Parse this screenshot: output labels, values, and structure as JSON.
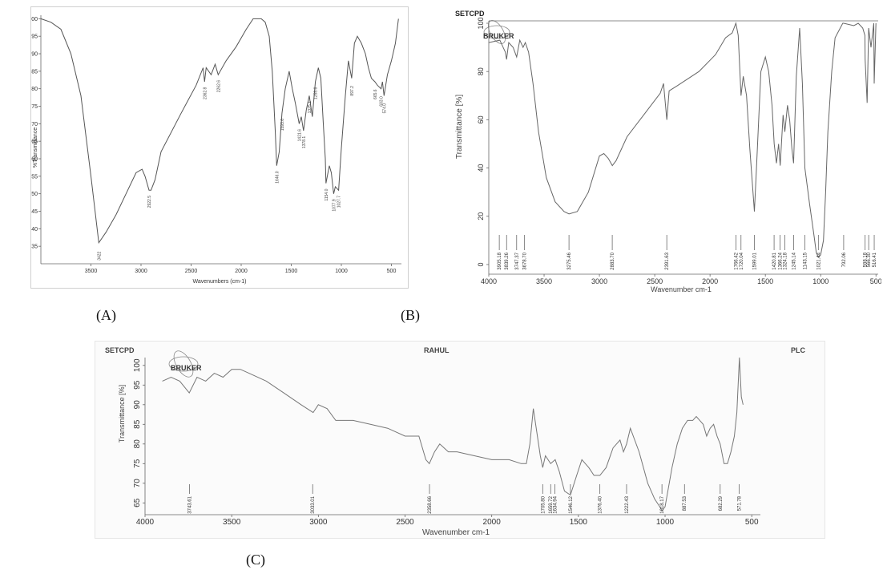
{
  "captions": {
    "a": "(A)",
    "b": "(B)",
    "c": "(C)"
  },
  "chart_data": [
    {
      "panel": "A",
      "type": "line",
      "xlabel": "Wavenumbers (cm-1)",
      "ylabel": "%Transmittance",
      "xlim": [
        4000,
        400
      ],
      "ylim": [
        30,
        101
      ],
      "xticks": [
        3500,
        3000,
        2500,
        2000,
        1500,
        1000,
        500
      ],
      "yticks": [
        35,
        40,
        45,
        50,
        55,
        60,
        65,
        70,
        75,
        80,
        85,
        90,
        95,
        100
      ],
      "line_color": "#555555",
      "series": [
        {
          "x": [
            4000,
            3900,
            3800,
            3700,
            3600,
            3500,
            3422,
            3350,
            3250,
            3150,
            3050,
            2990,
            2960,
            2920,
            2900,
            2860,
            2800,
            2600,
            2450,
            2380,
            2366,
            2350,
            2300,
            2260,
            2230,
            2150,
            2050,
            1950,
            1880,
            1800,
            1760,
            1720,
            1690,
            1660,
            1646,
            1620,
            1593,
            1560,
            1521,
            1490,
            1460,
            1421,
            1400,
            1378,
            1350,
            1320,
            1290,
            1259,
            1230,
            1205,
            1180,
            1160,
            1154,
            1120,
            1100,
            1077,
            1060,
            1027,
            1000,
            960,
            930,
            897,
            870,
            840,
            800,
            760,
            730,
            700,
            665,
            640,
            603,
            590,
            574,
            540,
            500,
            460,
            430
          ],
          "y": [
            100,
            99,
            97,
            90,
            78,
            55,
            36,
            39,
            44,
            50,
            56,
            57,
            55,
            51,
            51,
            54,
            62,
            73,
            81,
            86,
            82,
            86,
            84,
            87,
            84,
            88,
            92,
            97,
            100,
            100,
            99,
            95,
            85,
            68,
            58,
            62,
            73,
            80,
            85,
            80,
            76,
            70,
            72,
            68,
            74,
            78,
            72,
            82,
            86,
            83,
            70,
            60,
            53,
            58,
            56,
            50,
            52,
            51,
            63,
            78,
            88,
            83,
            93,
            95,
            93,
            90,
            86,
            83,
            82,
            81,
            80,
            82,
            78,
            84,
            88,
            93,
            100
          ]
        }
      ],
      "peak_labels": [
        {
          "label": "3422",
          "x": 3422,
          "y": 36
        },
        {
          "label": "2922.5",
          "x": 2920,
          "y": 51
        },
        {
          "label": "2362.8",
          "x": 2366,
          "y": 82
        },
        {
          "label": "2262.6",
          "x": 2230,
          "y": 84
        },
        {
          "label": "1646.0",
          "x": 1646,
          "y": 58
        },
        {
          "label": "1593.6",
          "x": 1593,
          "y": 73
        },
        {
          "label": "1421.6",
          "x": 1421,
          "y": 70
        },
        {
          "label": "1378.1",
          "x": 1378,
          "y": 68
        },
        {
          "label": "1325.1",
          "x": 1320,
          "y": 78
        },
        {
          "label": "1259.6",
          "x": 1259,
          "y": 82
        },
        {
          "label": "1154.0",
          "x": 1154,
          "y": 53
        },
        {
          "label": "1077.9",
          "x": 1077,
          "y": 50
        },
        {
          "label": "1027.7",
          "x": 1027,
          "y": 51
        },
        {
          "label": "897.2",
          "x": 897,
          "y": 83
        },
        {
          "label": "665.6",
          "x": 665,
          "y": 82
        },
        {
          "label": "603.0",
          "x": 603,
          "y": 80
        },
        {
          "label": "574.0",
          "x": 574,
          "y": 78
        }
      ]
    },
    {
      "panel": "B",
      "type": "line",
      "header": "SETCPD",
      "logo": "BRUKER",
      "xlabel": "Wavenumber cm-1",
      "ylabel": "Transmittance [%]",
      "xlim": [
        4000,
        480
      ],
      "ylim": [
        -4,
        101
      ],
      "xticks": [
        4000,
        3500,
        3000,
        2500,
        2000,
        1500,
        1000,
        "500"
      ],
      "yticks": [
        0,
        20,
        40,
        60,
        80,
        100
      ],
      "line_color": "#666666",
      "series": [
        {
          "x": [
            4000,
            3900,
            3850,
            3839,
            3820,
            3780,
            3748,
            3720,
            3690,
            3670,
            3640,
            3600,
            3550,
            3480,
            3400,
            3320,
            3275,
            3200,
            3100,
            3000,
            2960,
            2920,
            2883,
            2850,
            2750,
            2600,
            2450,
            2420,
            2391,
            2370,
            2300,
            2100,
            1950,
            1860,
            1800,
            1766,
            1745,
            1720,
            1700,
            1670,
            1640,
            1599,
            1580,
            1540,
            1500,
            1470,
            1440,
            1420,
            1400,
            1380,
            1366,
            1340,
            1324,
            1300,
            1280,
            1260,
            1245,
            1220,
            1190,
            1165,
            1143,
            1100,
            1060,
            1040,
            1021,
            1000,
            975,
            955,
            935,
            900,
            870,
            800,
            792,
            700,
            660,
            620,
            600,
            598,
            580,
            566,
            545,
            520,
            516,
            500
          ],
          "y": [
            92,
            93,
            88,
            85,
            92,
            90,
            86,
            93,
            90,
            92,
            88,
            75,
            55,
            36,
            26,
            22,
            21,
            22,
            30,
            45,
            46,
            44,
            41,
            43,
            53,
            62,
            71,
            75,
            60,
            72,
            74,
            80,
            87,
            94,
            96,
            100,
            95,
            70,
            78,
            70,
            48,
            22,
            40,
            80,
            86,
            80,
            66,
            50,
            42,
            50,
            41,
            62,
            55,
            66,
            60,
            48,
            42,
            78,
            98,
            75,
            40,
            25,
            12,
            5,
            3,
            4,
            10,
            30,
            55,
            80,
            94,
            100,
            100,
            99,
            100,
            98,
            95,
            85,
            67,
            98,
            90,
            100,
            75,
            100
          ]
        }
      ],
      "peak_labels": [
        "3905.18",
        "3839.26",
        "3747.37",
        "3678.70",
        "3275.46",
        "2883.70",
        "2391.63",
        "1766.42",
        "1720.04",
        "1599.01",
        "1420.81",
        "1366.24",
        "1324.18",
        "1245.14",
        "1143.15",
        "1021.44",
        "792.06",
        "598.18",
        "566.30",
        "516.41"
      ],
      "peak_positions": [
        3905,
        3839,
        3748,
        3679,
        3275,
        2884,
        2391,
        1766,
        1720,
        1599,
        1421,
        1366,
        1324,
        1245,
        1143,
        1021,
        792,
        598,
        566,
        516
      ]
    },
    {
      "panel": "C",
      "type": "line",
      "header_left": "SETCPD",
      "header_center": "RAHUL",
      "header_right": "PLC",
      "logo": "BRUKER",
      "xlabel": "Wavenumber cm-1",
      "ylabel": "Transmittance [%]",
      "xlim": [
        4000,
        450
      ],
      "ylim": [
        62,
        102
      ],
      "xticks": [
        4000,
        3500,
        3000,
        2500,
        2000,
        1500,
        1000,
        500
      ],
      "yticks": [
        65,
        70,
        75,
        80,
        85,
        90,
        95,
        100
      ],
      "line_color": "#777777",
      "series": [
        {
          "x": [
            3900,
            3850,
            3800,
            3745,
            3700,
            3650,
            3600,
            3550,
            3500,
            3450,
            3400,
            3300,
            3200,
            3100,
            3030,
            3000,
            2950,
            2900,
            2800,
            2700,
            2600,
            2500,
            2420,
            2380,
            2360,
            2330,
            2300,
            2250,
            2200,
            2100,
            2000,
            1900,
            1830,
            1800,
            1780,
            1760,
            1720,
            1706,
            1690,
            1660,
            1634,
            1610,
            1580,
            1546,
            1510,
            1480,
            1460,
            1440,
            1410,
            1376,
            1340,
            1300,
            1260,
            1240,
            1222,
            1200,
            1150,
            1100,
            1060,
            1030,
            1018,
            1000,
            960,
            930,
            900,
            870,
            840,
            820,
            800,
            780,
            760,
            740,
            720,
            700,
            682,
            660,
            640,
            620,
            600,
            586,
            571,
            560,
            550
          ],
          "y": [
            96,
            97,
            96,
            93,
            97,
            96,
            98,
            97,
            99,
            99,
            98,
            96,
            93,
            90,
            88,
            90,
            89,
            86,
            86,
            85,
            84,
            82,
            82,
            76,
            75,
            78,
            80,
            78,
            78,
            77,
            76,
            76,
            75,
            75,
            80,
            89,
            77,
            74,
            77,
            75,
            76,
            73,
            68,
            67,
            72,
            76,
            75,
            74,
            72,
            72,
            74,
            79,
            81,
            78,
            80,
            84,
            78,
            70,
            66,
            64,
            63,
            64,
            74,
            80,
            84,
            86,
            86,
            87,
            86,
            85,
            82,
            84,
            85,
            82,
            80,
            75,
            75,
            78,
            82,
            88,
            102,
            92,
            90
          ]
        }
      ],
      "peak_labels": [
        "3743.61",
        "3033.01",
        "2358.66",
        "1705.80",
        "1659.72",
        "1634.94",
        "1546.12",
        "1376.40",
        "1222.43",
        "1018.17",
        "887.53",
        "682.29",
        "571.78"
      ],
      "peak_positions": [
        3743,
        3033,
        2359,
        1706,
        1660,
        1635,
        1546,
        1376,
        1222,
        1018,
        888,
        682,
        572
      ]
    }
  ]
}
